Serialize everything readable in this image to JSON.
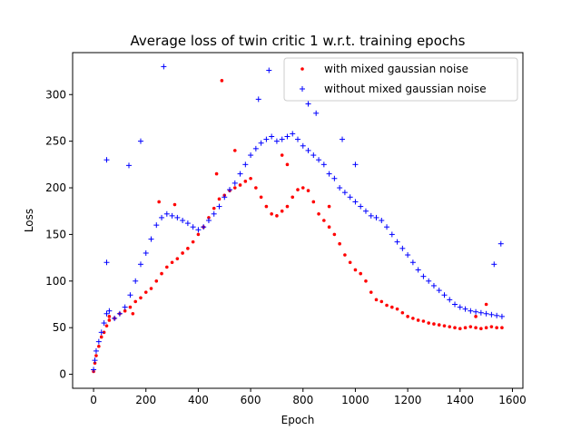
{
  "chart_data": {
    "type": "scatter",
    "title": "Average loss of twin critic 1 w.r.t. training epochs",
    "xlabel": "Epoch",
    "ylabel": "Loss",
    "xlim": [
      -80,
      1640
    ],
    "ylim": [
      -15,
      345
    ],
    "xticks": [
      0,
      200,
      400,
      600,
      800,
      1000,
      1200,
      1400,
      1600
    ],
    "yticks": [
      0,
      50,
      100,
      150,
      200,
      250,
      300
    ],
    "grid": false,
    "legend_position": "top-right",
    "series": [
      {
        "name": "with mixed gaussian noise",
        "marker": "dot",
        "color": "#ff0000",
        "points": [
          [
            0,
            3
          ],
          [
            5,
            12
          ],
          [
            10,
            20
          ],
          [
            20,
            30
          ],
          [
            30,
            40
          ],
          [
            40,
            45
          ],
          [
            50,
            52
          ],
          [
            60,
            58
          ],
          [
            80,
            60
          ],
          [
            100,
            65
          ],
          [
            120,
            68
          ],
          [
            140,
            72
          ],
          [
            160,
            78
          ],
          [
            180,
            82
          ],
          [
            200,
            88
          ],
          [
            220,
            92
          ],
          [
            240,
            100
          ],
          [
            260,
            108
          ],
          [
            280,
            115
          ],
          [
            300,
            120
          ],
          [
            320,
            124
          ],
          [
            340,
            130
          ],
          [
            360,
            135
          ],
          [
            380,
            142
          ],
          [
            400,
            150
          ],
          [
            420,
            158
          ],
          [
            440,
            168
          ],
          [
            460,
            178
          ],
          [
            480,
            188
          ],
          [
            500,
            192
          ],
          [
            520,
            197
          ],
          [
            540,
            200
          ],
          [
            560,
            203
          ],
          [
            580,
            207
          ],
          [
            600,
            210
          ],
          [
            620,
            200
          ],
          [
            640,
            190
          ],
          [
            660,
            180
          ],
          [
            680,
            172
          ],
          [
            700,
            170
          ],
          [
            720,
            175
          ],
          [
            740,
            180
          ],
          [
            760,
            190
          ],
          [
            780,
            198
          ],
          [
            800,
            200
          ],
          [
            820,
            197
          ],
          [
            840,
            185
          ],
          [
            860,
            172
          ],
          [
            880,
            165
          ],
          [
            900,
            158
          ],
          [
            920,
            150
          ],
          [
            940,
            140
          ],
          [
            960,
            128
          ],
          [
            980,
            120
          ],
          [
            1000,
            112
          ],
          [
            1020,
            108
          ],
          [
            1040,
            100
          ],
          [
            1060,
            88
          ],
          [
            1080,
            80
          ],
          [
            1100,
            78
          ],
          [
            1120,
            74
          ],
          [
            1140,
            72
          ],
          [
            1160,
            70
          ],
          [
            1180,
            66
          ],
          [
            1200,
            62
          ],
          [
            1220,
            60
          ],
          [
            1240,
            58
          ],
          [
            1260,
            57
          ],
          [
            1280,
            55
          ],
          [
            1300,
            54
          ],
          [
            1320,
            53
          ],
          [
            1340,
            52
          ],
          [
            1360,
            51
          ],
          [
            1380,
            50
          ],
          [
            1400,
            49
          ],
          [
            1420,
            50
          ],
          [
            1440,
            51
          ],
          [
            1460,
            50
          ],
          [
            1480,
            49
          ],
          [
            1500,
            50
          ],
          [
            1520,
            51
          ],
          [
            1540,
            50
          ],
          [
            1560,
            50
          ],
          [
            490,
            315
          ],
          [
            250,
            185
          ],
          [
            310,
            182
          ],
          [
            470,
            215
          ],
          [
            540,
            240
          ],
          [
            720,
            235
          ],
          [
            740,
            225
          ],
          [
            60,
            62
          ],
          [
            150,
            65
          ],
          [
            900,
            180
          ],
          [
            1500,
            75
          ],
          [
            1460,
            62
          ]
        ]
      },
      {
        "name": "without mixed gaussian noise",
        "marker": "plus",
        "color": "#0000ff",
        "points": [
          [
            0,
            5
          ],
          [
            5,
            15
          ],
          [
            10,
            25
          ],
          [
            20,
            35
          ],
          [
            30,
            45
          ],
          [
            40,
            55
          ],
          [
            50,
            65
          ],
          [
            60,
            68
          ],
          [
            80,
            60
          ],
          [
            100,
            65
          ],
          [
            120,
            72
          ],
          [
            140,
            85
          ],
          [
            160,
            100
          ],
          [
            180,
            118
          ],
          [
            200,
            130
          ],
          [
            220,
            145
          ],
          [
            240,
            160
          ],
          [
            260,
            168
          ],
          [
            280,
            172
          ],
          [
            300,
            170
          ],
          [
            320,
            168
          ],
          [
            340,
            165
          ],
          [
            360,
            162
          ],
          [
            380,
            158
          ],
          [
            400,
            155
          ],
          [
            420,
            158
          ],
          [
            440,
            165
          ],
          [
            460,
            172
          ],
          [
            480,
            180
          ],
          [
            500,
            190
          ],
          [
            520,
            198
          ],
          [
            540,
            205
          ],
          [
            560,
            215
          ],
          [
            580,
            225
          ],
          [
            600,
            235
          ],
          [
            620,
            242
          ],
          [
            640,
            248
          ],
          [
            660,
            252
          ],
          [
            680,
            255
          ],
          [
            700,
            250
          ],
          [
            720,
            252
          ],
          [
            740,
            255
          ],
          [
            760,
            258
          ],
          [
            780,
            252
          ],
          [
            800,
            245
          ],
          [
            820,
            240
          ],
          [
            840,
            235
          ],
          [
            860,
            230
          ],
          [
            880,
            225
          ],
          [
            900,
            215
          ],
          [
            920,
            210
          ],
          [
            940,
            200
          ],
          [
            960,
            195
          ],
          [
            980,
            190
          ],
          [
            1000,
            185
          ],
          [
            1020,
            180
          ],
          [
            1040,
            175
          ],
          [
            1060,
            170
          ],
          [
            1080,
            168
          ],
          [
            1100,
            165
          ],
          [
            1120,
            158
          ],
          [
            1140,
            150
          ],
          [
            1160,
            142
          ],
          [
            1180,
            135
          ],
          [
            1200,
            128
          ],
          [
            1220,
            120
          ],
          [
            1240,
            112
          ],
          [
            1260,
            105
          ],
          [
            1280,
            100
          ],
          [
            1300,
            95
          ],
          [
            1320,
            90
          ],
          [
            1340,
            85
          ],
          [
            1360,
            80
          ],
          [
            1380,
            75
          ],
          [
            1400,
            72
          ],
          [
            1420,
            70
          ],
          [
            1440,
            68
          ],
          [
            1460,
            67
          ],
          [
            1480,
            66
          ],
          [
            1500,
            65
          ],
          [
            1520,
            64
          ],
          [
            1540,
            63
          ],
          [
            1560,
            62
          ],
          [
            268,
            330
          ],
          [
            670,
            326
          ],
          [
            50,
            230
          ],
          [
            135,
            224
          ],
          [
            180,
            250
          ],
          [
            630,
            295
          ],
          [
            950,
            252
          ],
          [
            1000,
            225
          ],
          [
            50,
            120
          ],
          [
            1556,
            140
          ],
          [
            1530,
            118
          ],
          [
            820,
            290
          ],
          [
            850,
            280
          ]
        ]
      }
    ]
  }
}
